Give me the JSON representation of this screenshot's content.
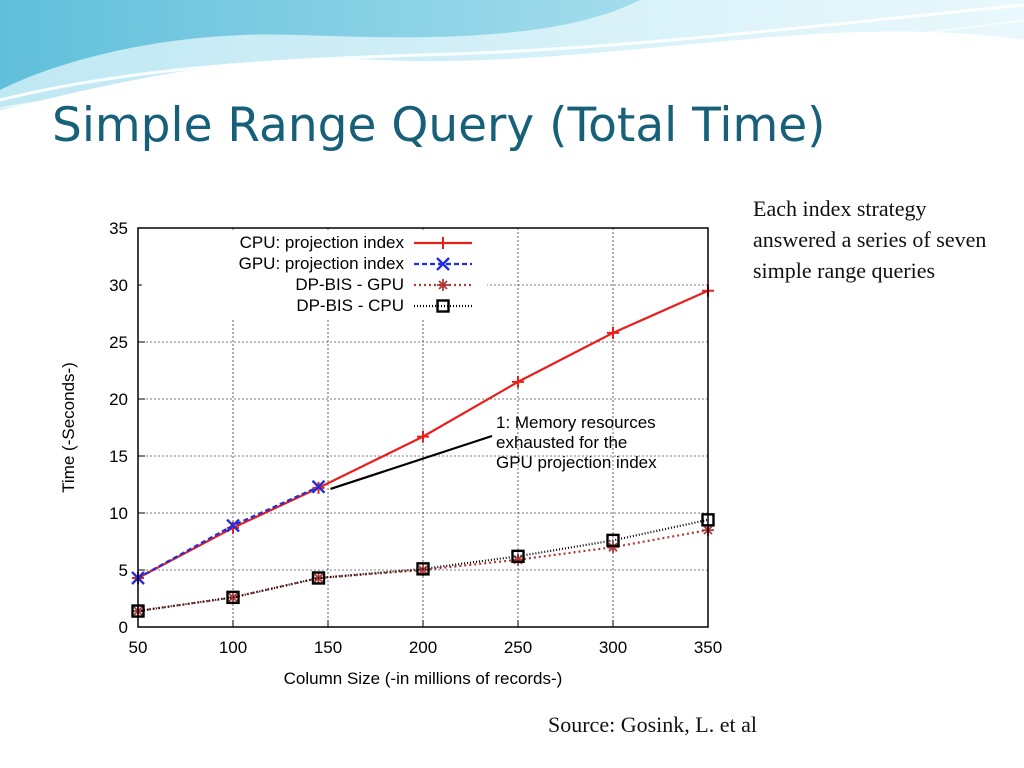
{
  "slide": {
    "title": "Simple Range Query (Total Time)",
    "note": "Each index strategy answered a series of seven simple range queries",
    "source": "Source: Gosink, L. et al"
  },
  "colors": {
    "title": "#17607a",
    "banner_light": "#cdeef6",
    "banner_mid": "#8fd4e6",
    "banner_dark": "#3fa9c9"
  },
  "chart_data": {
    "type": "line",
    "title": "",
    "xlabel": "Column Size (-in millions of records-)",
    "ylabel": "Time (-Seconds-)",
    "xlim": [
      50,
      350
    ],
    "ylim": [
      0,
      35
    ],
    "xticks": [
      50,
      100,
      150,
      200,
      250,
      300,
      350
    ],
    "yticks": [
      0,
      5,
      10,
      15,
      20,
      25,
      30,
      35
    ],
    "grid": true,
    "legend_position": "top-left",
    "series": [
      {
        "name": "CPU: projection index",
        "color": "#e8201c",
        "marker": "plus",
        "dash": "",
        "points": [
          [
            50,
            4.3
          ],
          [
            100,
            8.7
          ],
          [
            145,
            12.2
          ],
          [
            200,
            16.7
          ],
          [
            250,
            21.5
          ],
          [
            300,
            25.8
          ],
          [
            350,
            29.5
          ]
        ]
      },
      {
        "name": "GPU: projection index",
        "color": "#1f2fe0",
        "marker": "x",
        "dash": "5,3",
        "points": [
          [
            50,
            4.3
          ],
          [
            100,
            8.9
          ],
          [
            145,
            12.3
          ]
        ]
      },
      {
        "name": "DP-BIS - GPU",
        "color": "#b03a3a",
        "marker": "star",
        "dash": "2,3",
        "points": [
          [
            50,
            1.4
          ],
          [
            100,
            2.6
          ],
          [
            145,
            4.3
          ],
          [
            200,
            5.0
          ],
          [
            250,
            5.9
          ],
          [
            300,
            7.0
          ],
          [
            350,
            8.5
          ]
        ]
      },
      {
        "name": "DP-BIS - CPU",
        "color": "#000000",
        "marker": "square",
        "dash": "1,2",
        "points": [
          [
            50,
            1.4
          ],
          [
            100,
            2.6
          ],
          [
            145,
            4.3
          ],
          [
            200,
            5.1
          ],
          [
            250,
            6.2
          ],
          [
            300,
            7.6
          ],
          [
            350,
            9.4
          ]
        ]
      }
    ],
    "annotation": {
      "lines": [
        "1: Memory resources",
        "exhausted for the",
        "GPU projection index"
      ],
      "target": [
        145,
        12.2
      ]
    }
  }
}
